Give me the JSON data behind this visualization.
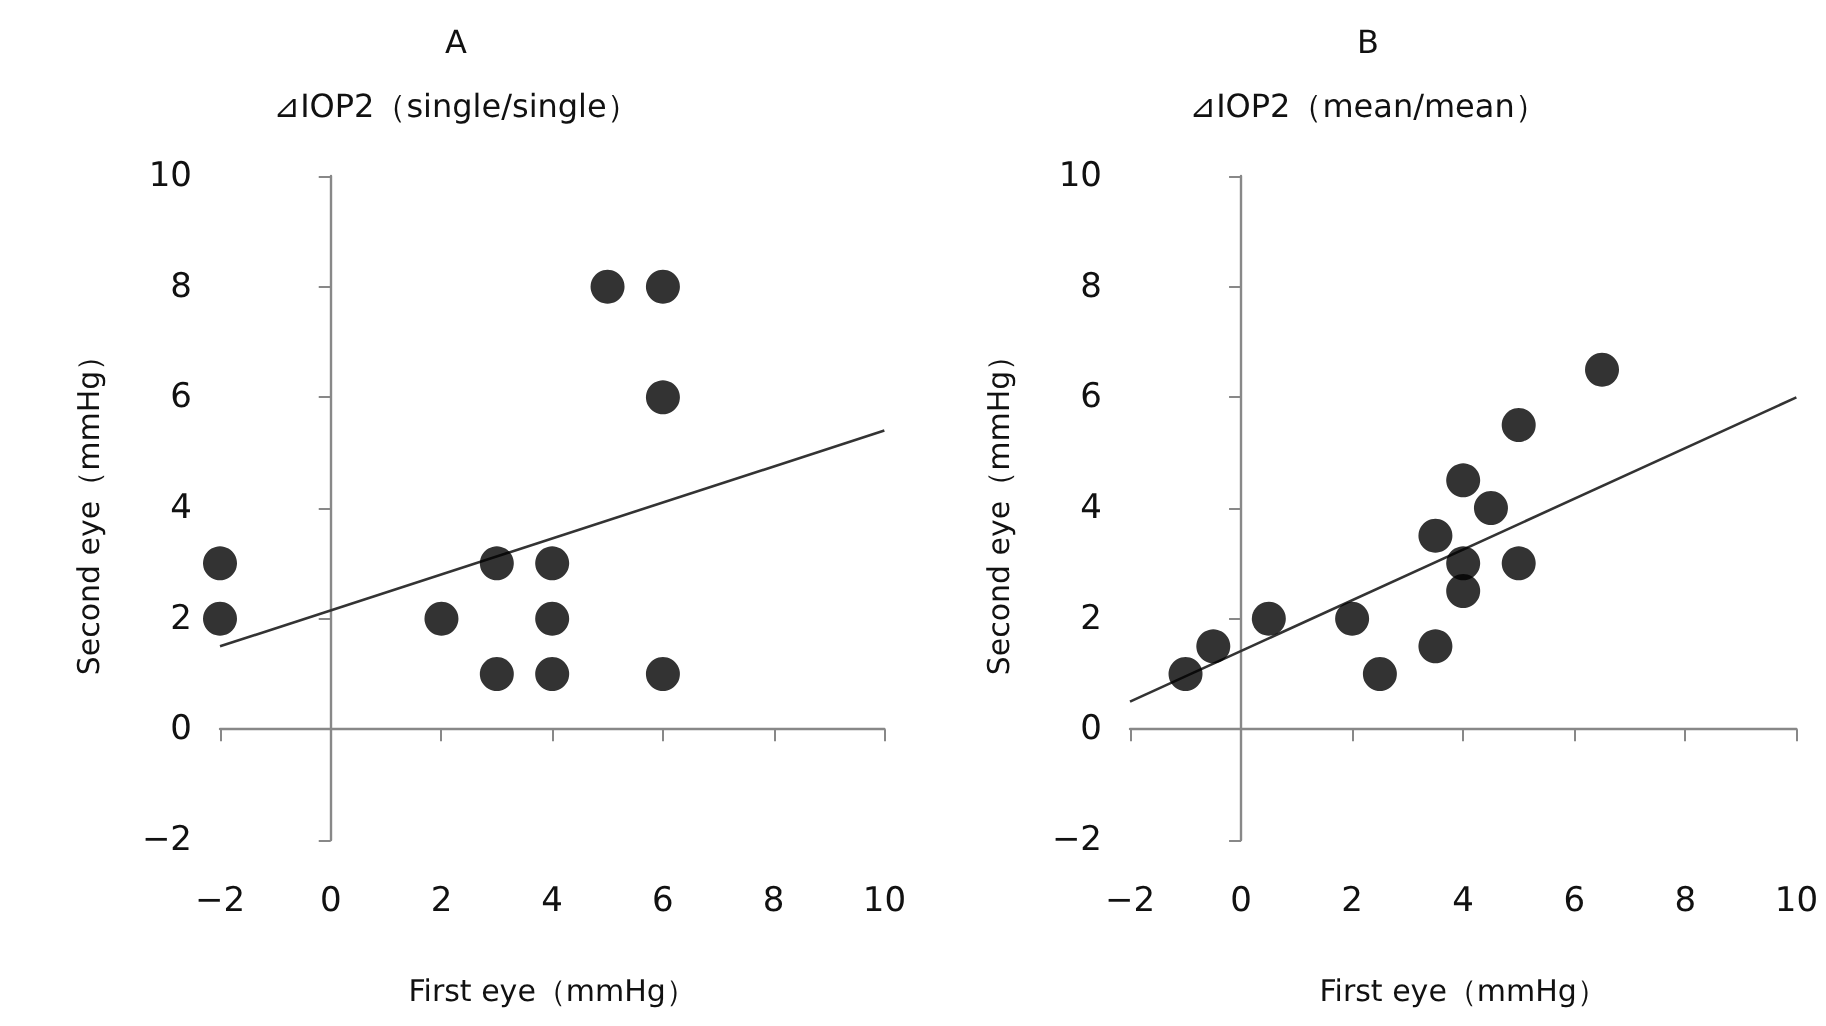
{
  "chart_data": [
    {
      "type": "scatter",
      "title": "A",
      "subtitle": "⊿IOP2（single/single）",
      "xlabel": "First eye（mmHg）",
      "ylabel": "Second eye（mmHg）",
      "marker": "circle",
      "xlim": [
        -2,
        10
      ],
      "xticks": [
        -2,
        0,
        2,
        4,
        6,
        8,
        10
      ],
      "ylim": [
        -2,
        10
      ],
      "yticks": [
        -2,
        0,
        2,
        4,
        6,
        8,
        10
      ],
      "series": [
        {
          "color": "#000000",
          "x": [
            -2,
            -2,
            2,
            3,
            3,
            4,
            4,
            4,
            5,
            6,
            6,
            6
          ],
          "values": [
            3,
            2,
            2,
            3,
            1,
            3,
            2,
            1,
            8,
            8,
            6,
            1
          ]
        },
        {
          "type": "line",
          "color": "#333333",
          "line_style": "solid",
          "marker": "none",
          "x": [
            -2,
            10
          ],
          "values": [
            1.5,
            5.4
          ]
        }
      ]
    },
    {
      "type": "scatter",
      "title": "B",
      "subtitle": "⊿IOP2（mean/mean）",
      "xlabel": "First eye（mmHg）",
      "ylabel": "Second eye（mmHg）",
      "marker": "circle",
      "xlim": [
        -2,
        10
      ],
      "xticks": [
        -2,
        0,
        2,
        4,
        6,
        8,
        10
      ],
      "ylim": [
        -2,
        10
      ],
      "yticks": [
        -2,
        0,
        2,
        4,
        6,
        8,
        10
      ],
      "series": [
        {
          "color": "#000000",
          "x": [
            -1,
            -0.5,
            0.5,
            2,
            2.5,
            3.5,
            3.5,
            4,
            4,
            4,
            4.5,
            5,
            5,
            6.5
          ],
          "values": [
            1,
            1.5,
            2,
            2,
            1,
            1.5,
            3.5,
            4.5,
            3,
            2.5,
            4,
            5.5,
            3,
            6.5
          ]
        },
        {
          "type": "line",
          "color": "#333333",
          "line_style": "solid",
          "marker": "none",
          "x": [
            -2,
            10
          ],
          "values": [
            0.5,
            6
          ]
        }
      ]
    }
  ]
}
